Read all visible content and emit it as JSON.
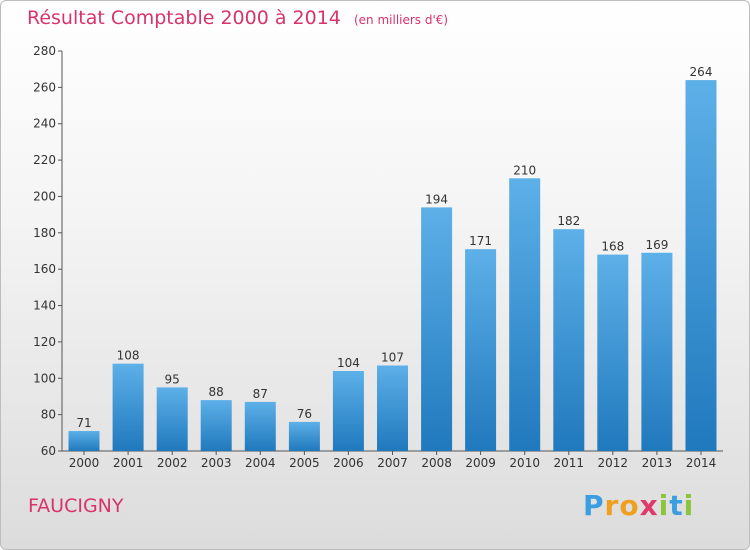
{
  "chart_data": {
    "type": "bar",
    "title": "Résultat Comptable 2000 à 2014",
    "subtitle": "(en milliers d'€)",
    "categories": [
      "2000",
      "2001",
      "2002",
      "2003",
      "2004",
      "2005",
      "2006",
      "2007",
      "2008",
      "2009",
      "2010",
      "2011",
      "2012",
      "2013",
      "2014"
    ],
    "values": [
      71,
      108,
      95,
      88,
      87,
      76,
      104,
      107,
      194,
      171,
      210,
      182,
      168,
      169,
      264
    ],
    "ylim": [
      60,
      280
    ],
    "yticks": [
      60,
      80,
      100,
      120,
      140,
      160,
      180,
      200,
      220,
      240,
      260,
      280
    ],
    "grid": false,
    "xlabel": "",
    "ylabel": ""
  },
  "commune": "FAUCIGNY",
  "brand": {
    "letters": [
      "P",
      "r",
      "o",
      "x",
      "i",
      "t",
      "i"
    ],
    "colors": [
      "#3a9ee0",
      "#f0a020",
      "#f0a020",
      "#e03a6a",
      "#8cc43c",
      "#3a9ee0",
      "#8cc43c"
    ]
  },
  "colors": {
    "title": "#d8336b",
    "bar_light": "#5aaee6",
    "bar_dark": "#1f7bbf"
  }
}
